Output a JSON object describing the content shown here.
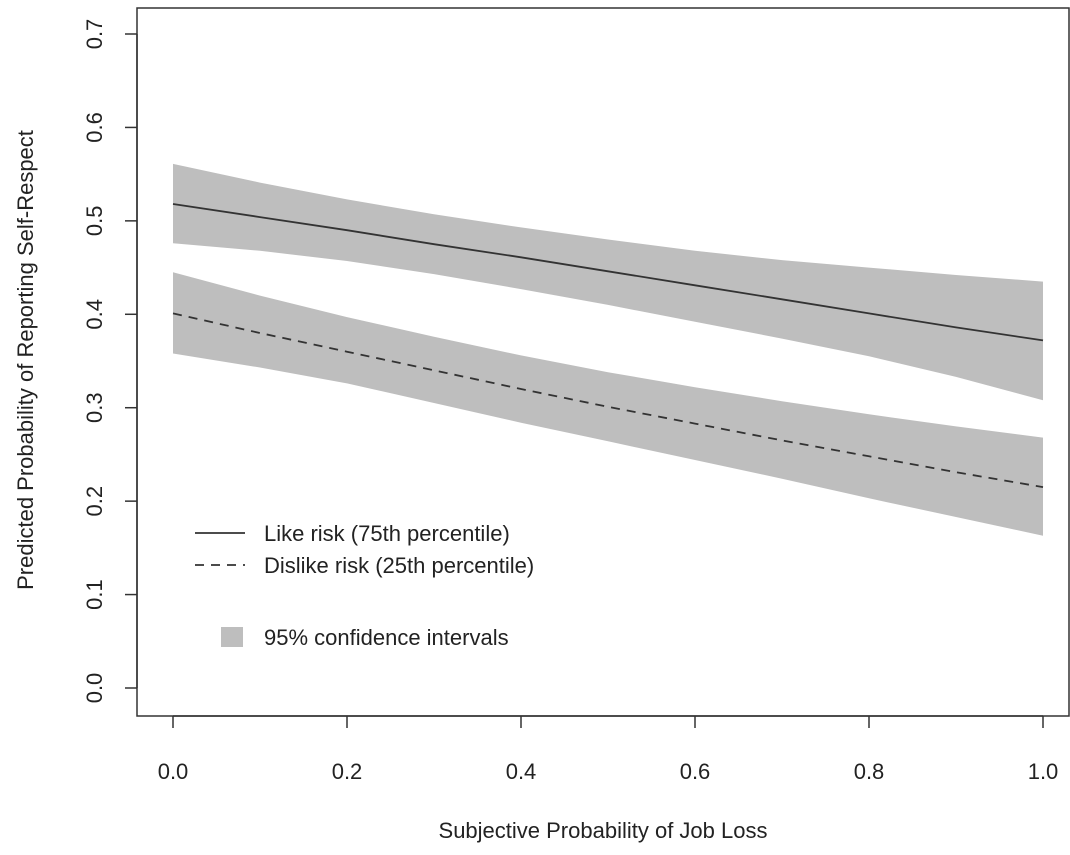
{
  "chart_data": {
    "type": "line",
    "title": "",
    "xlabel": "Subjective Probability of Job Loss",
    "ylabel": "Predicted Probability of Reporting Self-Respect",
    "xlim": [
      0.0,
      1.0
    ],
    "ylim": [
      0.0,
      0.7
    ],
    "x_ticks": [
      "0.0",
      "0.2",
      "0.4",
      "0.6",
      "0.8",
      "1.0"
    ],
    "y_ticks": [
      "0.0",
      "0.1",
      "0.2",
      "0.3",
      "0.4",
      "0.5",
      "0.6",
      "0.7"
    ],
    "grid": false,
    "legend_position": "bottom-left",
    "x": [
      0.0,
      0.1,
      0.2,
      0.3,
      0.4,
      0.5,
      0.6,
      0.7,
      0.8,
      0.9,
      1.0
    ],
    "series": [
      {
        "name": "Like risk (75th percentile)",
        "line_style": "solid",
        "values": [
          0.518,
          0.504,
          0.49,
          0.475,
          0.461,
          0.446,
          0.431,
          0.416,
          0.401,
          0.386,
          0.372
        ],
        "ci_upper": [
          0.561,
          0.541,
          0.523,
          0.507,
          0.493,
          0.48,
          0.468,
          0.458,
          0.45,
          0.442,
          0.435
        ],
        "ci_lower": [
          0.476,
          0.468,
          0.457,
          0.443,
          0.427,
          0.41,
          0.392,
          0.374,
          0.355,
          0.333,
          0.308
        ]
      },
      {
        "name": "Dislike risk (25th percentile)",
        "line_style": "dashed",
        "values": [
          0.401,
          0.38,
          0.36,
          0.34,
          0.32,
          0.301,
          0.283,
          0.265,
          0.248,
          0.231,
          0.215
        ],
        "ci_upper": [
          0.445,
          0.42,
          0.397,
          0.376,
          0.356,
          0.338,
          0.322,
          0.307,
          0.293,
          0.28,
          0.268
        ],
        "ci_lower": [
          0.358,
          0.343,
          0.326,
          0.305,
          0.284,
          0.264,
          0.244,
          0.224,
          0.203,
          0.183,
          0.163
        ]
      }
    ],
    "confidence_band": {
      "label": "95% confidence intervals",
      "color": "#bebebe"
    },
    "line_color": "#333333",
    "axis_color": "#333333"
  }
}
